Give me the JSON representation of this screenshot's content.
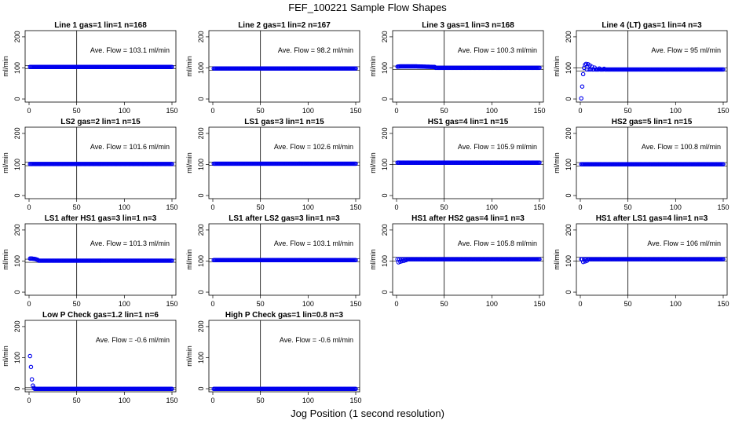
{
  "figure": {
    "title": "FEF_100221  Sample Flow Shapes",
    "xlabel": "Jog Position (1 second resolution)"
  },
  "chart_data": [
    {
      "type": "scatter",
      "title": "Line 1 gas=1 lin=1 n=168",
      "ylabel": "ml/min",
      "annotation": "Ave. Flow =  103.1  ml/min",
      "xlim": [
        0,
        150
      ],
      "ylim": [
        -10,
        220
      ],
      "xticks": [
        0,
        50,
        100,
        150
      ],
      "yticks": [
        0,
        100,
        200
      ],
      "vline": 50,
      "hlines": [
        98,
        108
      ],
      "marker_color": "#0000ee",
      "series": [
        {
          "x_range": [
            1,
            150
          ],
          "level": 103.1
        }
      ]
    },
    {
      "type": "scatter",
      "title": "Line 2 gas=1 lin=2 n=167",
      "ylabel": "ml/min",
      "annotation": "Ave. Flow =  98.2  ml/min",
      "xlim": [
        0,
        150
      ],
      "ylim": [
        -10,
        220
      ],
      "xticks": [
        0,
        50,
        100,
        150
      ],
      "yticks": [
        0,
        100,
        200
      ],
      "vline": 50,
      "hlines": [
        92,
        104
      ],
      "marker_color": "#0000ee",
      "series": [
        {
          "x_range": [
            1,
            150
          ],
          "level": 98.2
        }
      ]
    },
    {
      "type": "scatter",
      "title": "Line 3 gas=1 lin=3 n=168",
      "ylabel": "ml/min",
      "annotation": "Ave. Flow =  100.3  ml/min",
      "xlim": [
        0,
        150
      ],
      "ylim": [
        -10,
        220
      ],
      "xticks": [
        0,
        50,
        100,
        150
      ],
      "yticks": [
        0,
        100,
        200
      ],
      "vline": 50,
      "hlines": [
        95,
        106
      ],
      "marker_color": "#0000ee",
      "series": [
        {
          "x_range": [
            1,
            150
          ],
          "level": 100.3,
          "start_bump": [
            [
              1,
              104
            ],
            [
              4,
              105
            ],
            [
              10,
              105
            ],
            [
              20,
              105
            ],
            [
              30,
              104
            ],
            [
              40,
              103
            ]
          ]
        }
      ]
    },
    {
      "type": "scatter",
      "title": "Line 4 (LT) gas=1 lin=4 n=3",
      "ylabel": "ml/min",
      "annotation": "Ave. Flow =  95  ml/min",
      "xlim": [
        0,
        150
      ],
      "ylim": [
        -10,
        220
      ],
      "xticks": [
        0,
        50,
        100,
        150
      ],
      "yticks": [
        0,
        100,
        200
      ],
      "vline": 50,
      "hlines": [
        90,
        100
      ],
      "marker_color": "#0000ee",
      "series": [
        {
          "x_range": [
            1,
            150
          ],
          "level": 95,
          "start_points": [
            [
              1,
              2
            ],
            [
              2,
              40
            ],
            [
              3,
              80
            ],
            [
              4,
              100
            ],
            [
              5,
              110
            ],
            [
              6,
              113
            ],
            [
              8,
              112
            ],
            [
              10,
              108
            ],
            [
              12,
              104
            ],
            [
              15,
              101
            ],
            [
              20,
              98
            ],
            [
              25,
              97
            ]
          ]
        }
      ]
    },
    {
      "type": "scatter",
      "title": "LS2 gas=2 lin=1 n=15",
      "ylabel": "ml/min",
      "annotation": "Ave. Flow =  101.6  ml/min",
      "xlim": [
        0,
        150
      ],
      "ylim": [
        -10,
        220
      ],
      "xticks": [
        0,
        50,
        100,
        150
      ],
      "yticks": [
        0,
        100,
        200
      ],
      "vline": 50,
      "hlines": [
        96,
        107
      ],
      "marker_color": "#0000ee",
      "series": [
        {
          "x_range": [
            1,
            150
          ],
          "level": 101.6
        }
      ]
    },
    {
      "type": "scatter",
      "title": "LS1 gas=3 lin=1 n=15",
      "ylabel": "ml/min",
      "annotation": "Ave. Flow =  102.6  ml/min",
      "xlim": [
        0,
        150
      ],
      "ylim": [
        -10,
        220
      ],
      "xticks": [
        0,
        50,
        100,
        150
      ],
      "yticks": [
        0,
        100,
        200
      ],
      "vline": 50,
      "hlines": [
        97,
        108
      ],
      "marker_color": "#0000ee",
      "series": [
        {
          "x_range": [
            1,
            150
          ],
          "level": 102.6
        }
      ]
    },
    {
      "type": "scatter",
      "title": "HS1 gas=4 lin=1 n=15",
      "ylabel": "ml/min",
      "annotation": "Ave. Flow =  105.9  ml/min",
      "xlim": [
        0,
        150
      ],
      "ylim": [
        -10,
        220
      ],
      "xticks": [
        0,
        50,
        100,
        150
      ],
      "yticks": [
        0,
        100,
        200
      ],
      "vline": 50,
      "hlines": [
        100,
        111
      ],
      "marker_color": "#0000ee",
      "series": [
        {
          "x_range": [
            1,
            150
          ],
          "level": 105.9
        }
      ]
    },
    {
      "type": "scatter",
      "title": "HS2 gas=5 lin=1 n=15",
      "ylabel": "ml/min",
      "annotation": "Ave. Flow =  100.8  ml/min",
      "xlim": [
        0,
        150
      ],
      "ylim": [
        -10,
        220
      ],
      "xticks": [
        0,
        50,
        100,
        150
      ],
      "yticks": [
        0,
        100,
        200
      ],
      "vline": 50,
      "hlines": [
        95,
        106
      ],
      "marker_color": "#0000ee",
      "series": [
        {
          "x_range": [
            1,
            150
          ],
          "level": 100.8
        }
      ]
    },
    {
      "type": "scatter",
      "title": "LS1 after HS1 gas=3 lin=1 n=3",
      "ylabel": "ml/min",
      "annotation": "Ave. Flow =  101.3  ml/min",
      "xlim": [
        0,
        150
      ],
      "ylim": [
        -10,
        220
      ],
      "xticks": [
        0,
        50,
        100,
        150
      ],
      "yticks": [
        0,
        100,
        200
      ],
      "vline": 50,
      "hlines": [
        96,
        106
      ],
      "marker_color": "#0000ee",
      "series": [
        {
          "x_range": [
            1,
            150
          ],
          "level": 101.3,
          "start_bump": [
            [
              1,
              108
            ],
            [
              3,
              108
            ],
            [
              6,
              107
            ],
            [
              9,
              104
            ]
          ]
        }
      ]
    },
    {
      "type": "scatter",
      "title": "LS1 after LS2 gas=3 lin=1 n=3",
      "ylabel": "ml/min",
      "annotation": "Ave. Flow =  103.1  ml/min",
      "xlim": [
        0,
        150
      ],
      "ylim": [
        -10,
        220
      ],
      "xticks": [
        0,
        50,
        100,
        150
      ],
      "yticks": [
        0,
        100,
        200
      ],
      "vline": 50,
      "hlines": [
        98,
        108
      ],
      "marker_color": "#0000ee",
      "series": [
        {
          "x_range": [
            1,
            150
          ],
          "level": 103.1
        }
      ]
    },
    {
      "type": "scatter",
      "title": "HS1 after HS2 gas=4 lin=1 n=3",
      "ylabel": "ml/min",
      "annotation": "Ave. Flow =  105.8  ml/min",
      "xlim": [
        0,
        150
      ],
      "ylim": [
        -10,
        220
      ],
      "xticks": [
        0,
        50,
        100,
        150
      ],
      "yticks": [
        0,
        100,
        200
      ],
      "vline": 50,
      "hlines": [
        100,
        112
      ],
      "marker_color": "#0000ee",
      "series": [
        {
          "x_range": [
            1,
            150
          ],
          "level": 105.8,
          "start_points": [
            [
              2,
              96
            ],
            [
              4,
              98
            ],
            [
              6,
              100
            ],
            [
              8,
              101
            ],
            [
              10,
              103
            ]
          ]
        }
      ]
    },
    {
      "type": "scatter",
      "title": "HS1 after LS1 gas=4 lin=1 n=3",
      "ylabel": "ml/min",
      "annotation": "Ave. Flow =  106  ml/min",
      "xlim": [
        0,
        150
      ],
      "ylim": [
        -10,
        220
      ],
      "xticks": [
        0,
        50,
        100,
        150
      ],
      "yticks": [
        0,
        100,
        200
      ],
      "vline": 50,
      "hlines": [
        100,
        112
      ],
      "marker_color": "#0000ee",
      "series": [
        {
          "x_range": [
            1,
            150
          ],
          "level": 106,
          "start_points": [
            [
              3,
              97
            ],
            [
              5,
              99
            ],
            [
              7,
              101
            ]
          ]
        }
      ]
    },
    {
      "type": "scatter",
      "title": "Low P Check gas=1.2 lin=1 n=6",
      "ylabel": "ml/min",
      "annotation": "Ave. Flow =  -0.6  ml/min",
      "xlim": [
        0,
        150
      ],
      "ylim": [
        -10,
        220
      ],
      "xticks": [
        0,
        50,
        100,
        150
      ],
      "yticks": [
        0,
        100,
        200
      ],
      "vline": 50,
      "hlines": [
        -3,
        3
      ],
      "marker_color": "#0000ee",
      "series": [
        {
          "x_range": [
            1,
            150
          ],
          "level": -0.6,
          "start_points": [
            [
              1,
              105
            ],
            [
              2,
              70
            ],
            [
              3,
              30
            ],
            [
              4,
              10
            ],
            [
              5,
              3
            ]
          ]
        }
      ]
    },
    {
      "type": "scatter",
      "title": "High P Check gas=1 lin=0.8 n=3",
      "ylabel": "ml/min",
      "annotation": "Ave. Flow =  -0.6  ml/min",
      "xlim": [
        0,
        150
      ],
      "ylim": [
        -10,
        220
      ],
      "xticks": [
        0,
        50,
        100,
        150
      ],
      "yticks": [
        0,
        100,
        200
      ],
      "vline": 50,
      "hlines": [
        -3,
        3
      ],
      "marker_color": "#0000ee",
      "series": [
        {
          "x_range": [
            1,
            150
          ],
          "level": -0.6
        }
      ]
    }
  ]
}
